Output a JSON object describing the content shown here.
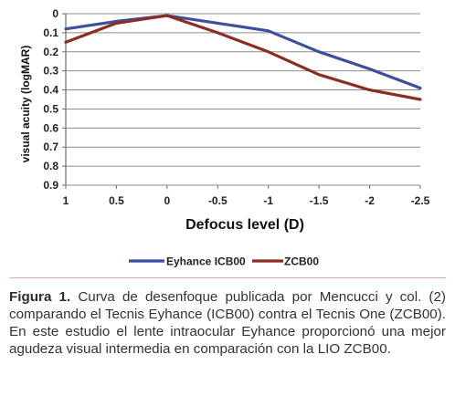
{
  "colors": {
    "series_eyhance": "#3b4ea2",
    "series_zcb00": "#8a2e24",
    "grid": "#8c8c8c",
    "caption_rule": "#e3a9a0"
  },
  "chart_data": {
    "type": "line",
    "xlabel": "Defocus level (D)",
    "ylabel": "visual acuity (logMAR)",
    "x": [
      1,
      0.5,
      0,
      -0.5,
      -1,
      -1.5,
      -2,
      -2.5
    ],
    "x_tick_labels": [
      "1",
      "0.5",
      "0",
      "-0.5",
      "-1",
      "-1.5",
      "-2",
      "-2.5"
    ],
    "y_tick_labels": [
      "0",
      "0.1",
      "0.2",
      "0.3",
      "0.4",
      "0.5",
      "0.6",
      "0.7",
      "0.8",
      "0.9"
    ],
    "ylim": [
      0.9,
      0
    ],
    "y_inverted": true,
    "grid": true,
    "legend_position": "bottom",
    "series": [
      {
        "name": "Eyhance ICB00",
        "values": [
          0.08,
          0.04,
          0.01,
          0.05,
          0.09,
          0.2,
          0.29,
          0.39
        ]
      },
      {
        "name": "ZCB00",
        "values": [
          0.15,
          0.05,
          0.01,
          0.1,
          0.2,
          0.32,
          0.4,
          0.45
        ]
      }
    ]
  },
  "caption": {
    "label": "Figura 1.",
    "text": " Curva de desenfoque publicada por Mencucci y col. (2) comparando el Tecnis Eyhance (ICB00) contra el Tecnis One (ZCB00).  En este estudio el lente intraocular Eyhance proporcionó una mejor agudeza visual intermedia en comparación con la LIO ZCB00."
  }
}
